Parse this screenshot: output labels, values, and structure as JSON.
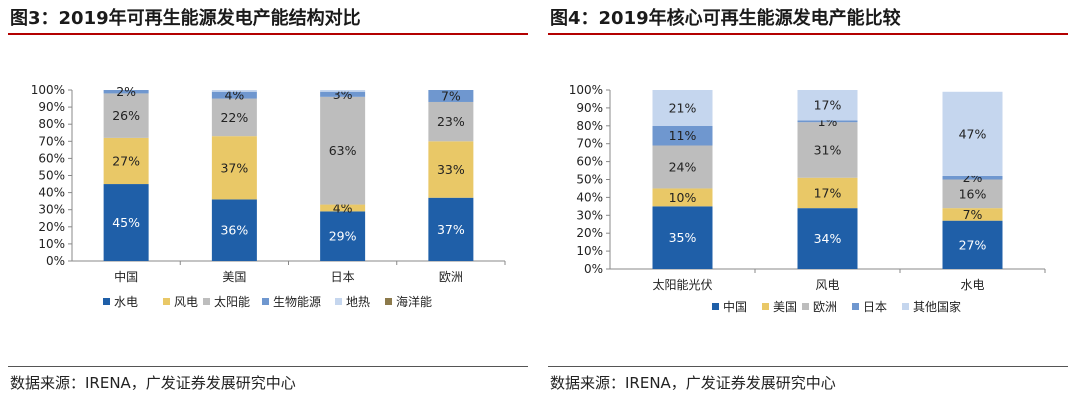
{
  "left": {
    "figure_title": "图3：2019年可再生能源发电产能结构对比",
    "source": "数据来源：IRENA，广发证券发展研究中心"
  },
  "right": {
    "figure_title": "图4：2019年核心可再生能源发电产能比较",
    "source": "数据来源：IRENA，广发证券发展研究中心"
  },
  "chart_data": [
    {
      "type": "bar",
      "stacked": true,
      "percent": true,
      "categories": [
        "中国",
        "美国",
        "日本",
        "欧洲"
      ],
      "ylim": [
        0,
        100
      ],
      "yticks": [
        "0%",
        "10%",
        "20%",
        "30%",
        "40%",
        "50%",
        "60%",
        "70%",
        "80%",
        "90%",
        "100%"
      ],
      "legend_position": "bottom",
      "grid": false,
      "series": [
        {
          "name": "水电",
          "color": "#1f5fa8",
          "values": [
            45,
            36,
            29,
            37
          ],
          "labels": [
            "45%",
            "36%",
            "29%",
            "37%"
          ]
        },
        {
          "name": "风电",
          "color": "#e9c867",
          "values": [
            27,
            37,
            4,
            33
          ],
          "labels": [
            "27%",
            "37%",
            "4%",
            "33%"
          ]
        },
        {
          "name": "太阳能",
          "color": "#bdbdbd",
          "values": [
            26,
            22,
            63,
            23
          ],
          "labels": [
            "26%",
            "22%",
            "63%",
            "23%"
          ]
        },
        {
          "name": "生物能源",
          "color": "#6f97cf",
          "values": [
            2,
            4,
            3,
            7
          ],
          "labels": [
            "2%",
            "4%",
            "3%",
            "7%"
          ]
        },
        {
          "name": "地热",
          "color": "#c5d6ee",
          "values": [
            0,
            1,
            1,
            0
          ],
          "labels": [
            "",
            "",
            "",
            ""
          ]
        },
        {
          "name": "海洋能",
          "color": "#8c7a4b",
          "values": [
            0,
            0,
            0,
            0
          ],
          "labels": [
            "",
            "",
            "",
            ""
          ]
        }
      ]
    },
    {
      "type": "bar",
      "stacked": true,
      "percent": true,
      "categories": [
        "太阳能光伏",
        "风电",
        "水电"
      ],
      "ylim": [
        0,
        100
      ],
      "yticks": [
        "0%",
        "10%",
        "20%",
        "30%",
        "40%",
        "50%",
        "60%",
        "70%",
        "80%",
        "90%",
        "100%"
      ],
      "legend_position": "bottom",
      "grid": false,
      "series": [
        {
          "name": "中国",
          "color": "#1f5fa8",
          "values": [
            35,
            34,
            27
          ],
          "labels": [
            "35%",
            "34%",
            "27%"
          ]
        },
        {
          "name": "美国",
          "color": "#e9c867",
          "values": [
            10,
            17,
            7
          ],
          "labels": [
            "10%",
            "17%",
            "7%"
          ]
        },
        {
          "name": "欧洲",
          "color": "#bdbdbd",
          "values": [
            24,
            31,
            16
          ],
          "labels": [
            "24%",
            "31%",
            "16%"
          ]
        },
        {
          "name": "日本",
          "color": "#6f97cf",
          "values": [
            11,
            1,
            2
          ],
          "labels": [
            "11%",
            "1%",
            "2%"
          ]
        },
        {
          "name": "其他国家",
          "color": "#c5d6ee",
          "values": [
            21,
            17,
            47
          ],
          "labels": [
            "21%",
            "17%",
            "47%"
          ]
        }
      ]
    }
  ]
}
